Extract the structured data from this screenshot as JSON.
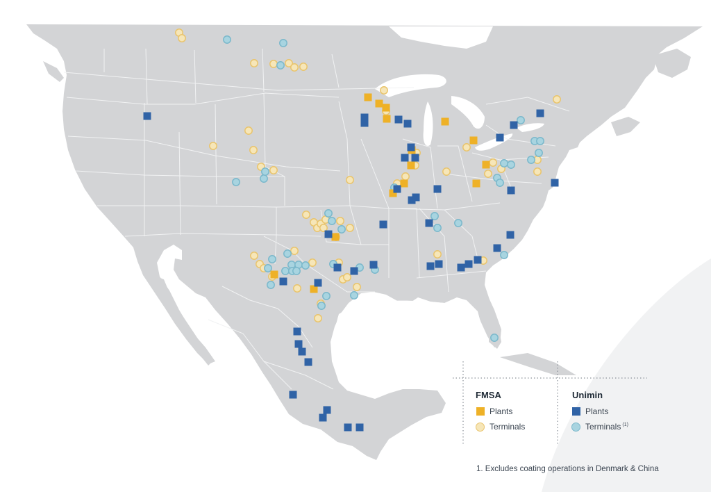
{
  "colors": {
    "land": "#d3d4d6",
    "border": "#f1f2f3",
    "background": "#ffffff",
    "fmsa_plant": "#eeb127",
    "fmsa_terminal_fill": "#f6e6b8",
    "fmsa_terminal_stroke": "#e9c46c",
    "unimin_plant": "#3063a6",
    "unimin_terminal_fill": "#a8d4e0",
    "unimin_terminal_stroke": "#7bb8cb"
  },
  "legend": {
    "fmsa": {
      "title": "FMSA",
      "plants": "Plants",
      "terminals": "Terminals"
    },
    "unimin": {
      "title": "Unimin",
      "plants": "Plants",
      "terminals": "Terminals",
      "terminals_note": "(1)"
    }
  },
  "footnote": "1. Excludes coating operations in Denmark & China"
}
